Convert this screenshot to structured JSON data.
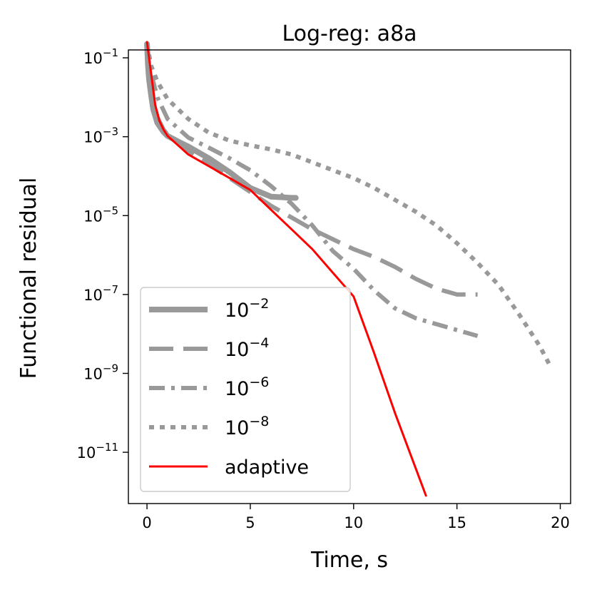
{
  "chart_data": {
    "type": "line",
    "title": "Log-reg: a8a",
    "xlabel": "Time, s",
    "ylabel": "Functional residual",
    "xlim": [
      -0.9,
      20.5
    ],
    "ylog_lim": [
      -12.3,
      -0.8
    ],
    "yscale": "log",
    "x_ticks": [
      0,
      5,
      10,
      15,
      20
    ],
    "x_tick_labels": [
      "0",
      "5",
      "10",
      "15",
      "20"
    ],
    "y_ticks": [
      {
        "exp": -1,
        "base": "10",
        "sup": "−1"
      },
      {
        "exp": -3,
        "base": "10",
        "sup": "−3"
      },
      {
        "exp": -5,
        "base": "10",
        "sup": "−5"
      },
      {
        "exp": -7,
        "base": "10",
        "sup": "−7"
      },
      {
        "exp": -9,
        "base": "10",
        "sup": "−9"
      },
      {
        "exp": -11,
        "base": "10",
        "sup": "−11"
      }
    ],
    "legend_position": "lower left",
    "series": [
      {
        "name": "10^-2",
        "label_base": "10",
        "label_sup": "−2",
        "color": "#999999",
        "style": "solid",
        "weight": "heavy",
        "x": [
          0.0,
          0.05,
          0.1,
          0.2,
          0.3,
          0.5,
          0.8,
          1.0,
          1.5,
          2.0,
          3.0,
          4.0,
          5.0,
          6.0,
          7.0,
          7.2
        ],
        "log_y": [
          -0.65,
          -1.2,
          -1.55,
          -1.95,
          -2.3,
          -2.65,
          -2.88,
          -2.98,
          -3.12,
          -3.25,
          -3.55,
          -3.9,
          -4.3,
          -4.52,
          -4.55,
          -4.55
        ]
      },
      {
        "name": "10^-4",
        "label_base": "10",
        "label_sup": "−4",
        "color": "#999999",
        "style": "dashed",
        "weight": "medium",
        "x": [
          0.0,
          0.1,
          0.3,
          0.5,
          0.8,
          1.0,
          2.0,
          3.0,
          4.0,
          5.0,
          6.0,
          7.0,
          8.0,
          9.0,
          10.0,
          11.0,
          12.0,
          13.0,
          14.0,
          15.0,
          16.0
        ],
        "log_y": [
          -0.65,
          -1.3,
          -2.05,
          -2.5,
          -2.82,
          -2.95,
          -3.35,
          -3.7,
          -4.05,
          -4.4,
          -4.75,
          -5.05,
          -5.35,
          -5.6,
          -5.85,
          -6.05,
          -6.3,
          -6.6,
          -6.85,
          -7.0,
          -7.0
        ]
      },
      {
        "name": "10^-6",
        "label_base": "10",
        "label_sup": "−6",
        "color": "#999999",
        "style": "dashdot",
        "weight": "medium",
        "x": [
          0.0,
          0.1,
          0.3,
          0.5,
          1.0,
          2.0,
          3.0,
          4.0,
          5.0,
          6.0,
          7.0,
          8.0,
          9.0,
          10.0,
          11.0,
          12.0,
          13.0,
          14.0,
          15.0,
          16.0
        ],
        "log_y": [
          -0.65,
          -1.1,
          -1.6,
          -2.0,
          -2.55,
          -3.02,
          -3.28,
          -3.55,
          -3.85,
          -4.25,
          -4.7,
          -5.25,
          -5.9,
          -6.35,
          -6.9,
          -7.35,
          -7.6,
          -7.75,
          -7.9,
          -8.05
        ]
      },
      {
        "name": "10^-8",
        "label_base": "10",
        "label_sup": "−8",
        "color": "#999999",
        "style": "dotted",
        "weight": "medium",
        "x": [
          0.0,
          0.2,
          0.5,
          1.0,
          2.0,
          3.0,
          4.0,
          5.0,
          6.0,
          7.0,
          8.0,
          9.0,
          10.0,
          11.0,
          12.0,
          13.0,
          14.0,
          15.0,
          16.0,
          17.0,
          18.0,
          19.0,
          19.5
        ],
        "log_y": [
          -0.65,
          -1.2,
          -1.6,
          -2.05,
          -2.55,
          -2.9,
          -3.1,
          -3.22,
          -3.32,
          -3.45,
          -3.65,
          -3.85,
          -4.05,
          -4.3,
          -4.6,
          -4.9,
          -5.25,
          -5.7,
          -6.2,
          -6.75,
          -7.5,
          -8.3,
          -8.8
        ]
      },
      {
        "name": "adaptive",
        "label_base": "adaptive",
        "label_sup": "",
        "color": "#ff0000",
        "style": "solid",
        "weight": "thin",
        "x": [
          0.0,
          0.2,
          0.4,
          0.6,
          0.8,
          1.0,
          2.0,
          3.0,
          4.0,
          5.0,
          6.0,
          7.0,
          8.0,
          9.0,
          10.0,
          11.0,
          12.0,
          13.0,
          13.5
        ],
        "log_y": [
          -0.6,
          -1.4,
          -2.2,
          -2.6,
          -2.82,
          -2.98,
          -3.45,
          -3.75,
          -4.05,
          -4.35,
          -4.85,
          -5.35,
          -5.85,
          -6.45,
          -7.05,
          -8.5,
          -10.0,
          -11.4,
          -12.1
        ]
      }
    ]
  }
}
